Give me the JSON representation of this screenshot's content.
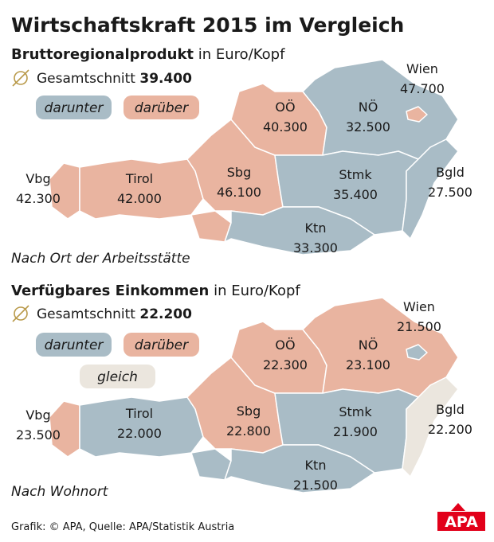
{
  "title": "Wirtschaftskraft 2015 im Vergleich",
  "maps": [
    {
      "subtitle_bold": "Bruttoregionalprodukt",
      "subtitle_rest": "in Euro/Kopf",
      "average_label": "Gesamtschnitt",
      "average_value": "39.400",
      "legend": [
        {
          "label": "darunter",
          "color": "#a9bcc6"
        },
        {
          "label": "darüber",
          "color": "#e9b4a0"
        }
      ],
      "note": "Nach Ort der Arbeitsstätte",
      "regions": [
        {
          "name": "Wien",
          "value": "47.700",
          "category": "darüber"
        },
        {
          "name": "NÖ",
          "value": "32.500",
          "category": "darunter"
        },
        {
          "name": "OÖ",
          "value": "40.300",
          "category": "darüber"
        },
        {
          "name": "Vbg",
          "value": "42.300",
          "category": "darüber"
        },
        {
          "name": "Tirol",
          "value": "42.000",
          "category": "darüber"
        },
        {
          "name": "Sbg",
          "value": "46.100",
          "category": "darüber"
        },
        {
          "name": "Stmk",
          "value": "35.400",
          "category": "darunter"
        },
        {
          "name": "Bgld",
          "value": "27.500",
          "category": "darunter"
        },
        {
          "name": "Ktn",
          "value": "33.300",
          "category": "darunter"
        }
      ]
    },
    {
      "subtitle_bold": "Verfügbares Einkommen",
      "subtitle_rest": "in Euro/Kopf",
      "average_label": "Gesamtschnitt",
      "average_value": "22.200",
      "legend": [
        {
          "label": "darunter",
          "color": "#a9bcc6"
        },
        {
          "label": "darüber",
          "color": "#e9b4a0"
        },
        {
          "label": "gleich",
          "color": "#ebe6de"
        }
      ],
      "note": "Nach Wohnort",
      "regions": [
        {
          "name": "Wien",
          "value": "21.500",
          "category": "darunter"
        },
        {
          "name": "NÖ",
          "value": "23.100",
          "category": "darüber"
        },
        {
          "name": "OÖ",
          "value": "22.300",
          "category": "darüber"
        },
        {
          "name": "Vbg",
          "value": "23.500",
          "category": "darüber"
        },
        {
          "name": "Tirol",
          "value": "22.000",
          "category": "darunter"
        },
        {
          "name": "Sbg",
          "value": "22.800",
          "category": "darüber"
        },
        {
          "name": "Stmk",
          "value": "21.900",
          "category": "darunter"
        },
        {
          "name": "Bgld",
          "value": "22.200",
          "category": "gleich"
        },
        {
          "name": "Ktn",
          "value": "21.500",
          "category": "darunter"
        }
      ]
    }
  ],
  "source": "Grafik: © APA, Quelle: APA/Statistik Austria",
  "logo": "APA"
}
